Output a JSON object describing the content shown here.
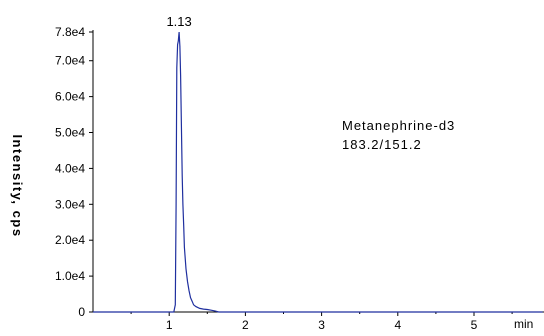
{
  "chart_data": {
    "type": "line",
    "title": "",
    "xlabel": "min",
    "ylabel": "Intensity, cps",
    "xlim": [
      0,
      5.9
    ],
    "ylim": [
      0,
      78000
    ],
    "y_ticks": [
      {
        "value": 0,
        "label": "0"
      },
      {
        "value": 10000,
        "label": "1.0e4"
      },
      {
        "value": 20000,
        "label": "2.0e4"
      },
      {
        "value": 30000,
        "label": "3.0e4"
      },
      {
        "value": 40000,
        "label": "4.0e4"
      },
      {
        "value": 50000,
        "label": "5.0e4"
      },
      {
        "value": 60000,
        "label": "6.0e4"
      },
      {
        "value": 70000,
        "label": "7.0e4"
      },
      {
        "value": 78000,
        "label": "7.8e4"
      }
    ],
    "x_ticks": [
      {
        "value": 1,
        "label": "1"
      },
      {
        "value": 2,
        "label": "2"
      },
      {
        "value": 3,
        "label": "3"
      },
      {
        "value": 4,
        "label": "4"
      },
      {
        "value": 5,
        "label": "5"
      }
    ],
    "series": [
      {
        "color": "#1f2f9f",
        "x": [
          0.0,
          1.0,
          1.06,
          1.08,
          1.09,
          1.1,
          1.11,
          1.12,
          1.13,
          1.14,
          1.15,
          1.16,
          1.17,
          1.18,
          1.19,
          1.2,
          1.22,
          1.24,
          1.26,
          1.28,
          1.3,
          1.32,
          1.35,
          1.4,
          1.45,
          1.5,
          1.55,
          1.6,
          1.65,
          2.0,
          3.0,
          4.0,
          5.0,
          5.9
        ],
        "y": [
          0,
          0,
          0,
          2000,
          30000,
          68000,
          74500,
          75500,
          78000,
          74000,
          66000,
          52000,
          38000,
          30000,
          24000,
          18000,
          12000,
          8500,
          6000,
          4000,
          3000,
          2000,
          1500,
          1000,
          800,
          700,
          500,
          300,
          0,
          0,
          0,
          0,
          0,
          0
        ]
      }
    ],
    "annotations": [
      {
        "text": "1.13",
        "x": 1.13,
        "y": 78000
      }
    ],
    "compound_name": "Metanephrine-d3",
    "transition": "183.2/151.2"
  }
}
